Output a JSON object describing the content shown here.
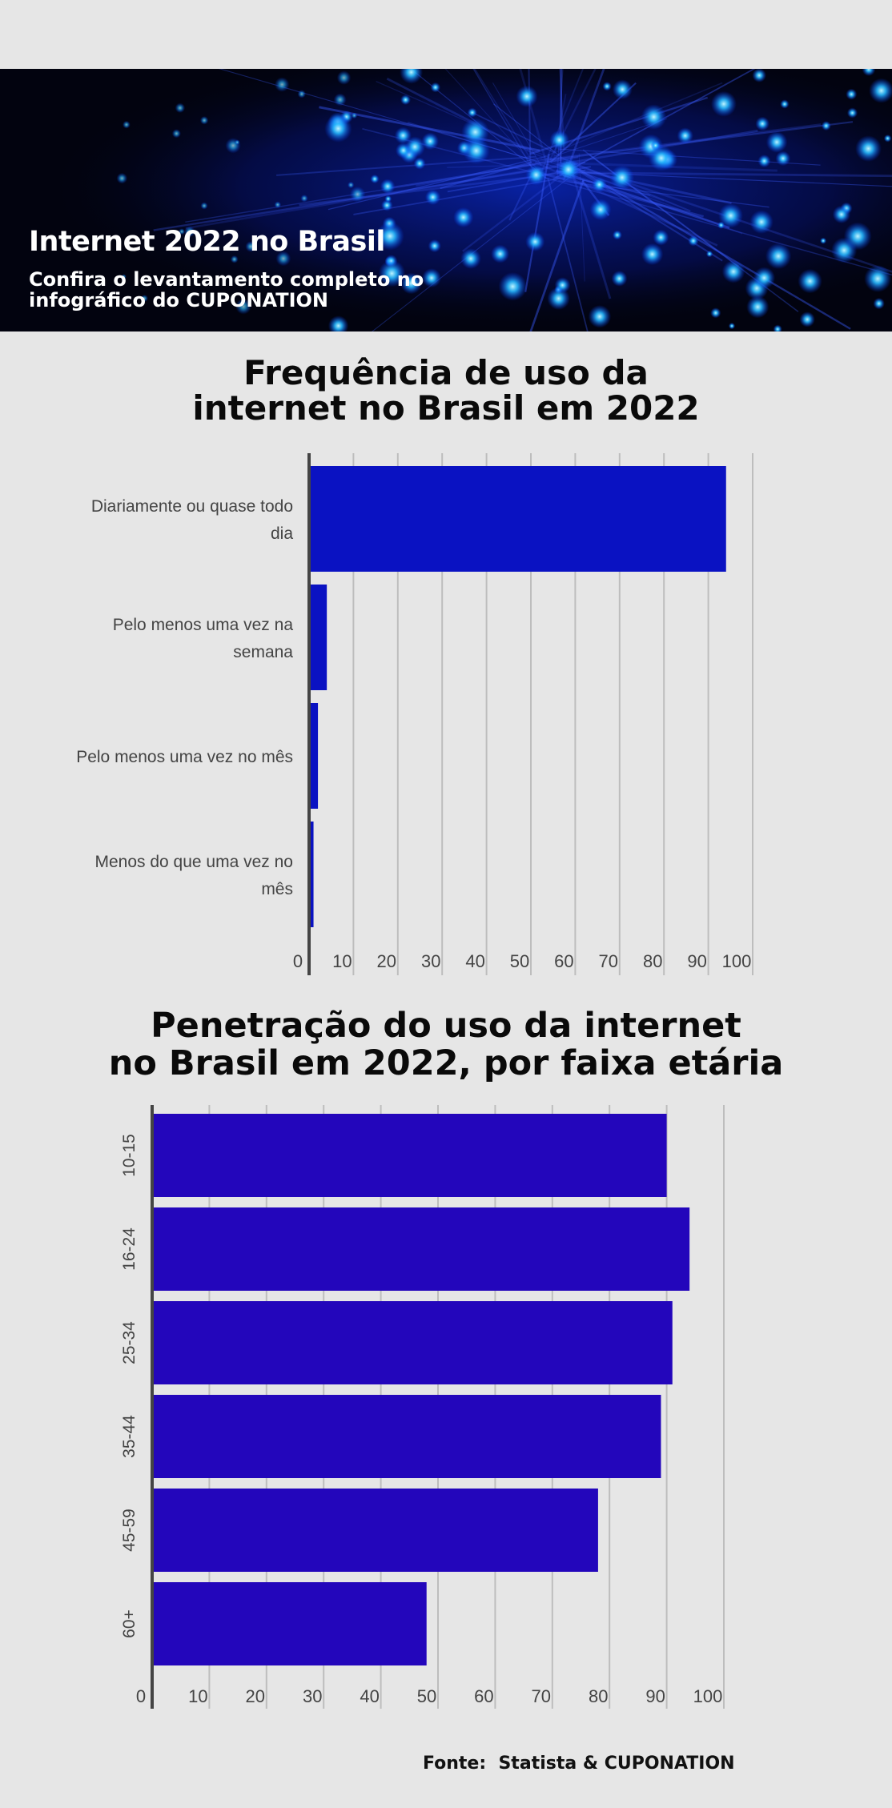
{
  "header": {
    "title": "Internet 2022 no Brasil",
    "subtitle": "Confira o levantamento completo no infográfico do CUPONATION"
  },
  "footer": {
    "source": "Fonte:  Statista & CUPONATION"
  },
  "colors": {
    "background": "#e6e6e6",
    "bar_chart_1": "#0a12c2",
    "bar_chart_2": "#2306bb",
    "gridline": "#bdbdbd",
    "axis": "#444444"
  },
  "chart_data": [
    {
      "type": "bar",
      "orientation": "horizontal",
      "title": [
        "Frequência de uso da",
        "internet no Brasil em 2022"
      ],
      "categories": [
        [
          "Diariamente ou quase todo",
          "dia"
        ],
        [
          "Pelo menos uma vez na",
          "semana"
        ],
        [
          "Pelo menos uma vez no mês"
        ],
        [
          "Menos do que uma vez no",
          "mês"
        ]
      ],
      "values": [
        94,
        4,
        2,
        1
      ],
      "xlim": [
        0,
        100
      ],
      "ticks": [
        0,
        10,
        20,
        30,
        40,
        50,
        60,
        70,
        80,
        90,
        100
      ],
      "grid": true,
      "legend": "none"
    },
    {
      "type": "bar",
      "orientation": "horizontal",
      "title": [
        "Penetração do uso da internet",
        "no Brasil em 2022, por faixa etária"
      ],
      "categories": [
        "10-15",
        "16-24",
        "25-34",
        "35-44",
        "45-59",
        "60+"
      ],
      "values": [
        90,
        94,
        91,
        89,
        78,
        48
      ],
      "xlim": [
        0,
        100
      ],
      "ticks": [
        0,
        10,
        20,
        30,
        40,
        50,
        60,
        70,
        80,
        90,
        100
      ],
      "grid": true,
      "legend": "none"
    }
  ]
}
